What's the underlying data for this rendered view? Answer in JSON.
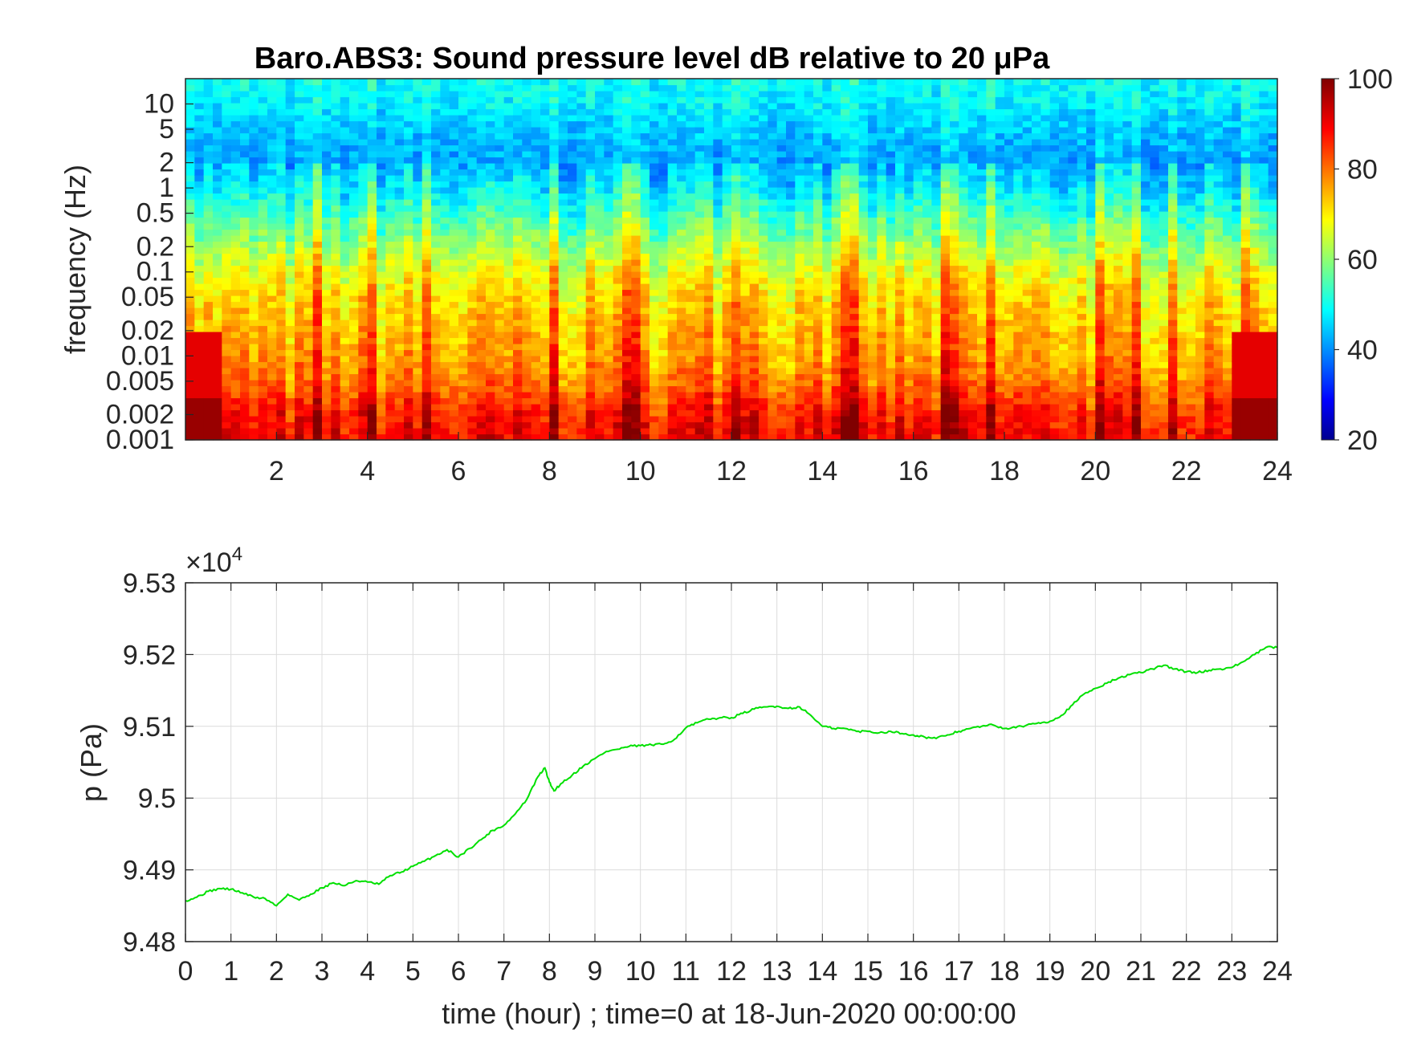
{
  "chart_data": [
    {
      "type": "heatmap",
      "title": "Baro.ABS3: Sound pressure level dB relative to 20 μPa",
      "ylabel": "frequency (Hz)",
      "xlabel": "",
      "xlim": [
        0,
        24
      ],
      "x_ticks": [
        2,
        4,
        6,
        8,
        10,
        12,
        14,
        16,
        18,
        20,
        22,
        24
      ],
      "x_tick_labels": [
        "2",
        "4",
        "6",
        "8",
        "10",
        "12",
        "14",
        "16",
        "18",
        "20",
        "22",
        "24"
      ],
      "y_scale": "log",
      "ylim": [
        0.001,
        20
      ],
      "y_ticks": [
        0.001,
        0.002,
        0.005,
        0.01,
        0.02,
        0.05,
        0.1,
        0.2,
        0.5,
        1,
        2,
        5,
        10
      ],
      "y_tick_labels": [
        "0.001",
        "0.002",
        "0.005",
        "0.01",
        "0.02",
        "0.05",
        "0.1",
        "0.2",
        "0.5",
        "1",
        "2",
        "5",
        "10"
      ],
      "colorbar": {
        "colormap": "jet",
        "clim": [
          20,
          100
        ],
        "ticks": [
          20,
          40,
          60,
          80,
          100
        ],
        "tick_labels": [
          "20",
          "40",
          "60",
          "80",
          "100"
        ]
      },
      "spectral_level_profile": {
        "frequency_hz": [
          0.001,
          0.002,
          0.005,
          0.01,
          0.02,
          0.05,
          0.1,
          0.2,
          0.5,
          1,
          2,
          5,
          10,
          20
        ],
        "typical_db": [
          88,
          86,
          78,
          75,
          73,
          70,
          66,
          60,
          52,
          46,
          42,
          45,
          48,
          50
        ]
      }
    },
    {
      "type": "line",
      "title": "",
      "xlabel": "time (hour) ; time=0 at 18-Jun-2020 00:00:00",
      "ylabel": "p (Pa)",
      "y_exponent_label": "×10",
      "y_exponent": "4",
      "xlim": [
        0,
        24
      ],
      "ylim": [
        94800,
        95300
      ],
      "x_ticks": [
        0,
        1,
        2,
        3,
        4,
        5,
        6,
        7,
        8,
        9,
        10,
        11,
        12,
        13,
        14,
        15,
        16,
        17,
        18,
        19,
        20,
        21,
        22,
        23,
        24
      ],
      "x_tick_labels": [
        "0",
        "1",
        "2",
        "3",
        "4",
        "5",
        "6",
        "7",
        "8",
        "9",
        "10",
        "11",
        "12",
        "13",
        "14",
        "15",
        "16",
        "17",
        "18",
        "19",
        "20",
        "21",
        "22",
        "23",
        "24"
      ],
      "y_ticks": [
        94800,
        94900,
        95000,
        95100,
        95200,
        95300
      ],
      "y_tick_labels": [
        "9.48",
        "9.49",
        "9.5",
        "9.51",
        "9.52",
        "9.53"
      ],
      "grid": true,
      "series": [
        {
          "color": "#00e000",
          "x": [
            0,
            0.25,
            0.5,
            0.75,
            1.0,
            1.25,
            1.5,
            1.75,
            2.0,
            2.25,
            2.5,
            2.75,
            3.0,
            3.25,
            3.5,
            3.75,
            4.0,
            4.25,
            4.5,
            4.75,
            5.0,
            5.25,
            5.5,
            5.75,
            6.0,
            6.25,
            6.5,
            6.75,
            7.0,
            7.25,
            7.5,
            7.75,
            7.9,
            8.0,
            8.1,
            8.25,
            8.5,
            8.75,
            9.0,
            9.25,
            9.5,
            9.75,
            10.0,
            10.25,
            10.5,
            10.75,
            11.0,
            11.25,
            11.5,
            11.75,
            12.0,
            12.25,
            12.5,
            12.75,
            13.0,
            13.25,
            13.5,
            13.75,
            14.0,
            14.25,
            14.5,
            14.75,
            15.0,
            15.25,
            15.5,
            15.75,
            16.0,
            16.25,
            16.5,
            16.75,
            17.0,
            17.25,
            17.5,
            17.75,
            18.0,
            18.25,
            18.5,
            18.75,
            19.0,
            19.25,
            19.5,
            19.75,
            20.0,
            20.25,
            20.5,
            20.75,
            21.0,
            21.25,
            21.5,
            21.75,
            22.0,
            22.25,
            22.5,
            22.75,
            23.0,
            23.25,
            23.5,
            23.75,
            24.0
          ],
          "y": [
            94857,
            94862,
            94870,
            94874,
            94873,
            94868,
            94862,
            94860,
            94850,
            94866,
            94858,
            94866,
            94875,
            94882,
            94878,
            94885,
            94883,
            94880,
            94892,
            94897,
            94905,
            94912,
            94920,
            94928,
            94918,
            94930,
            94942,
            94955,
            94962,
            94978,
            94998,
            95030,
            95042,
            95022,
            95010,
            95020,
            95032,
            95045,
            95055,
            95065,
            95068,
            95072,
            95073,
            95074,
            95075,
            95082,
            95098,
            95105,
            95110,
            95112,
            95112,
            95118,
            95124,
            95127,
            95128,
            95125,
            95127,
            95115,
            95100,
            95097,
            95097,
            95093,
            95093,
            95091,
            95093,
            95090,
            95088,
            95085,
            95083,
            95088,
            95093,
            95097,
            95100,
            95102,
            95097,
            95098,
            95102,
            95105,
            95107,
            95115,
            95130,
            95145,
            95153,
            95160,
            95167,
            95172,
            95175,
            95180,
            95185,
            95180,
            95176,
            95175,
            95178,
            95180,
            95182,
            95190,
            95200,
            95210,
            95210
          ]
        }
      ]
    }
  ]
}
